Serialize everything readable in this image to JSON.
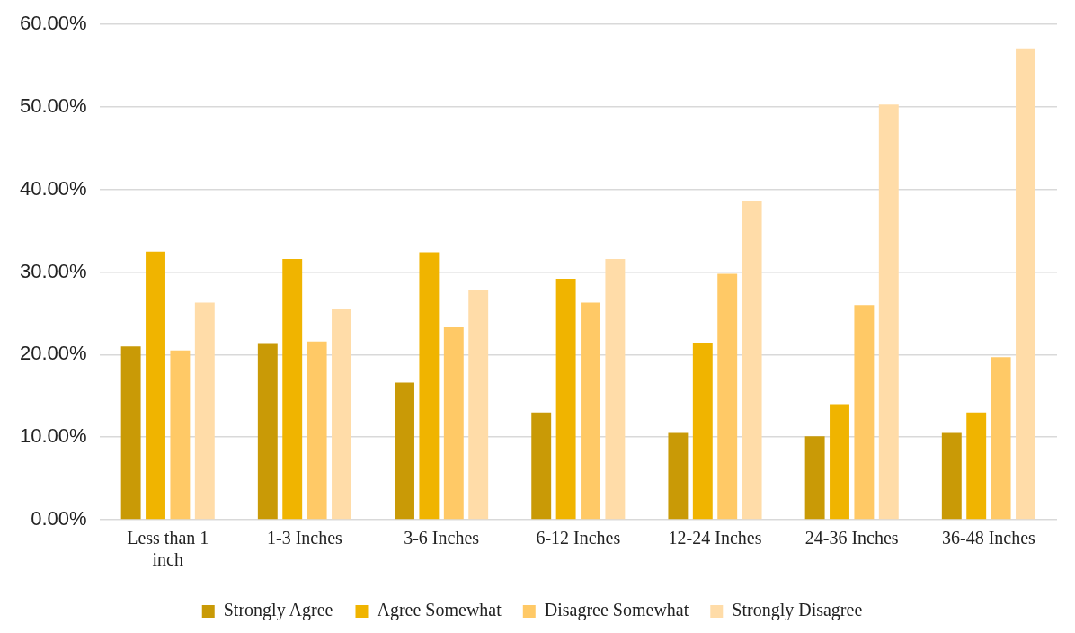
{
  "chart_data": {
    "type": "bar",
    "categories": [
      "Less than 1 inch",
      "1-3 Inches",
      "3-6 Inches",
      "6-12 Inches",
      "12-24 Inches",
      "24-36 Inches",
      "36-48 Inches"
    ],
    "series": [
      {
        "name": "Strongly Agree",
        "color": "#c99a06",
        "values": [
          21.0,
          21.3,
          16.6,
          13.0,
          10.5,
          10.1,
          10.5
        ]
      },
      {
        "name": "Agree Somewhat",
        "color": "#f0b400",
        "values": [
          32.5,
          31.6,
          32.4,
          29.2,
          21.4,
          14.0,
          13.0
        ]
      },
      {
        "name": "Disagree Somewhat",
        "color": "#ffc966",
        "values": [
          20.5,
          21.6,
          23.3,
          26.3,
          29.8,
          26.0,
          19.7
        ]
      },
      {
        "name": "Strongly Disagree",
        "color": "#ffdca8",
        "values": [
          26.3,
          25.5,
          27.8,
          31.6,
          38.6,
          50.3,
          57.1
        ]
      }
    ],
    "ylim": [
      0,
      60
    ],
    "yticks": [
      {
        "value": 0,
        "label": "0.00%"
      },
      {
        "value": 10,
        "label": "10.00%"
      },
      {
        "value": 20,
        "label": "20.00%"
      },
      {
        "value": 30,
        "label": "30.00%"
      },
      {
        "value": 40,
        "label": "40.00%"
      },
      {
        "value": 50,
        "label": "50.00%"
      },
      {
        "value": 60,
        "label": "60.00%"
      }
    ],
    "grid": "y",
    "legend": "bottom"
  }
}
